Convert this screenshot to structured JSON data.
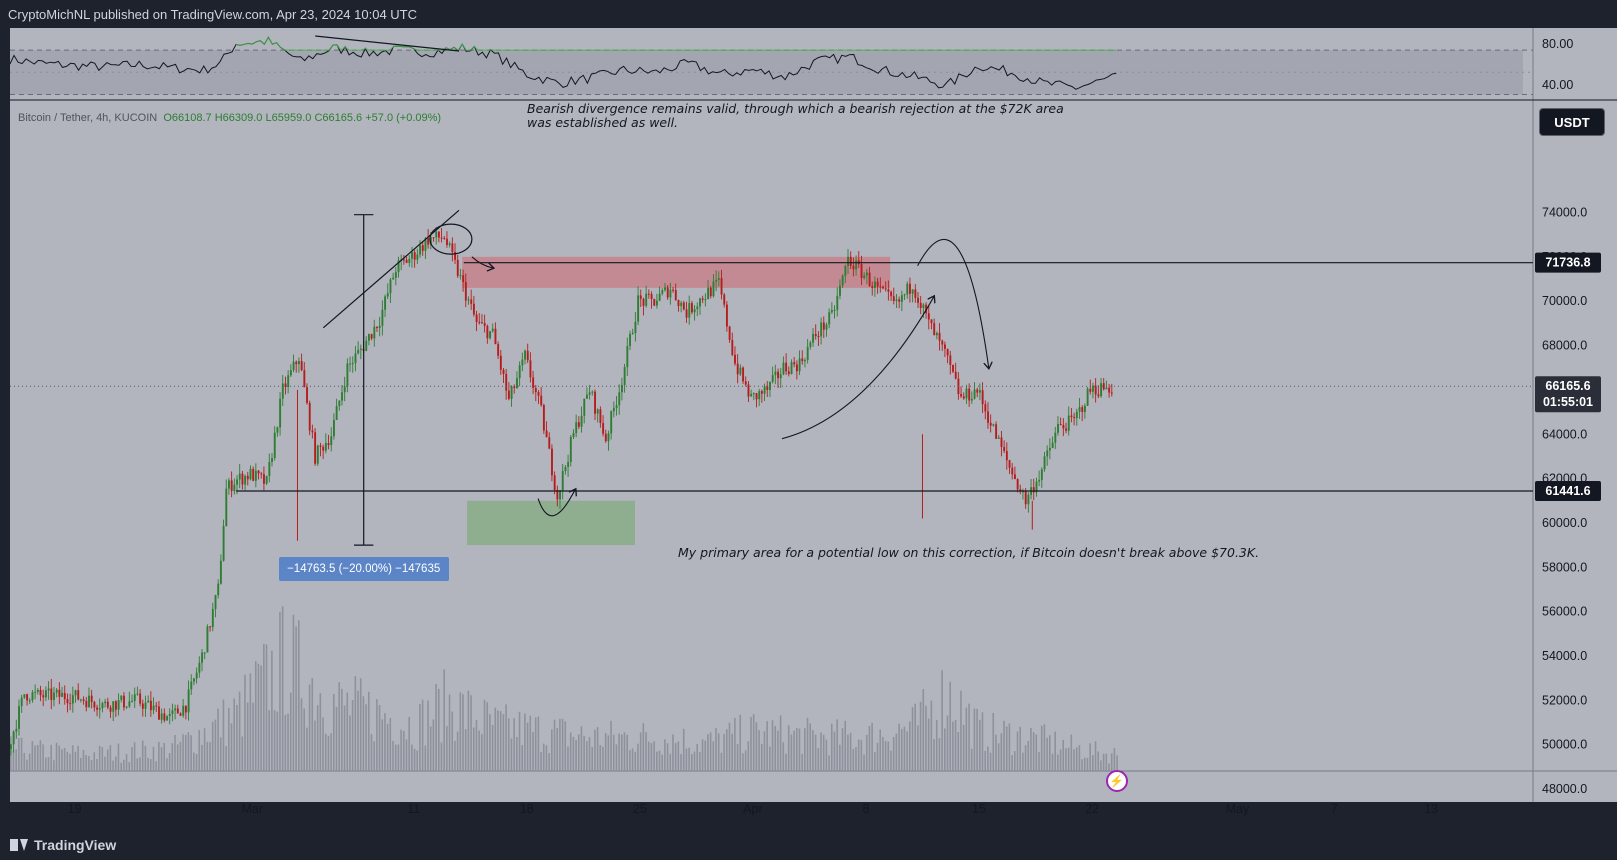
{
  "header": {
    "publisher_line": "CryptoMichNL published on TradingView.com, Apr 23, 2024 10:04 UTC"
  },
  "footer": {
    "brand": "TradingView"
  },
  "legend": {
    "symbol": "Bitcoin / Tether, 4h, KUCOIN",
    "open": "O66108.7",
    "high": "H66309.0",
    "low": "L65959.0",
    "close": "C66165.6",
    "change": "+57.0 (+0.09%)"
  },
  "currency_button": "USDT",
  "annotations": {
    "divergence_note_line1": "Bearish divergence remains valid, through which a bearish rejection at the $72K area",
    "divergence_note_line2": "was established as well.",
    "primary_area_note": "My primary area for a potential low on this correction, if Bitcoin doesn't break above $70.3K.",
    "measure_label": "−14763.5 (−20.00%) −147635"
  },
  "price_labels": {
    "resistance": "71736.8",
    "current": "66165.6",
    "countdown": "01:55:01",
    "support": "61441.6"
  },
  "colors": {
    "background": "#b2b5be",
    "up": "#2e7d32",
    "down": "#b71c1c",
    "resistance_zone": "#c48a93",
    "target_zone": "#8fae8f",
    "measure_box": "#5b85c7"
  },
  "chart_data": [
    {
      "type": "line",
      "title": "RSI",
      "ylim": [
        25,
        90
      ],
      "yticks": [
        "80.00",
        "40.00"
      ],
      "bands": [
        70,
        30
      ],
      "x_days": [
        0,
        2,
        4,
        6,
        8,
        10,
        12,
        13,
        14,
        16,
        18,
        20,
        22,
        24,
        26,
        28,
        30,
        32,
        34,
        36,
        38,
        40,
        42,
        44,
        46,
        48,
        50,
        52,
        54,
        56,
        58,
        60,
        62,
        64,
        66,
        68,
        70,
        72
      ],
      "values": [
        62,
        58,
        56,
        55,
        57,
        54,
        52,
        58,
        76,
        78,
        60,
        72,
        67,
        70,
        68,
        72,
        66,
        48,
        40,
        45,
        52,
        50,
        58,
        48,
        52,
        46,
        60,
        64,
        52,
        46,
        38,
        56,
        50,
        40,
        36,
        44,
        52,
        58
      ]
    },
    {
      "type": "candlestick",
      "title": "Bitcoin / Tether, 4h, KUCOIN",
      "ylabel": "USDT",
      "ylim": [
        47000,
        75000
      ],
      "yticks": [
        "74000.0",
        "72000.0",
        "70000.0",
        "68000.0",
        "66000.0",
        "64000.0",
        "62000.0",
        "60000.0",
        "58000.0",
        "56000.0",
        "54000.0",
        "52000.0",
        "50000.0",
        "48000.0"
      ],
      "xticks": [
        {
          "label": "19",
          "day": 4
        },
        {
          "label": "Mar",
          "day": 15
        },
        {
          "label": "11",
          "day": 25
        },
        {
          "label": "18",
          "day": 32
        },
        {
          "label": "25",
          "day": 39
        },
        {
          "label": "Apr",
          "day": 46
        },
        {
          "label": "8",
          "day": 53
        },
        {
          "label": "15",
          "day": 60
        },
        {
          "label": "22",
          "day": 67
        },
        {
          "label": "May",
          "day": 76
        },
        {
          "label": "7",
          "day": 82
        },
        {
          "label": "13",
          "day": 88
        }
      ],
      "x_start": "Feb 15, 2024",
      "series": [
        {
          "name": "BTC/USDT close",
          "x_days": [
            0,
            1,
            2,
            4,
            6,
            8,
            10,
            11,
            12,
            13,
            13.5,
            14,
            15,
            16,
            17,
            18,
            19,
            20,
            21,
            22,
            23,
            24,
            25,
            26,
            27,
            28,
            29,
            30,
            31,
            32,
            33,
            34,
            35,
            36,
            37,
            38,
            39,
            40,
            41,
            42,
            43,
            44,
            45,
            46,
            47,
            48,
            49,
            50,
            51,
            52,
            53,
            54,
            55,
            56,
            57,
            58,
            59,
            60,
            61,
            62,
            63,
            64,
            65,
            66,
            67,
            68
          ],
          "values": [
            49800,
            52300,
            52200,
            52200,
            51800,
            52000,
            51200,
            51800,
            54000,
            57000,
            61500,
            61900,
            62200,
            61800,
            66000,
            67500,
            63000,
            64000,
            67000,
            68000,
            69200,
            71500,
            72000,
            72800,
            72900,
            71000,
            69000,
            68500,
            65500,
            67500,
            65000,
            61200,
            64000,
            66000,
            63800,
            66500,
            70000,
            70000,
            70600,
            69500,
            70200,
            70800,
            67200,
            65600,
            66000,
            67000,
            67200,
            68500,
            69300,
            71900,
            71200,
            70400,
            69800,
            70800,
            69000,
            67600,
            65600,
            66000,
            64200,
            62500,
            61000,
            62400,
            64300,
            64600,
            66000,
            66100
          ]
        },
        {
          "name": "Volume",
          "unit": "relative",
          "x_days": [
            0,
            5,
            10,
            14,
            17,
            20,
            23,
            25,
            27,
            30,
            33,
            36,
            40,
            43,
            46,
            50,
            53,
            56,
            58,
            60,
            63,
            66,
            68
          ],
          "values": [
            0.2,
            0.15,
            0.2,
            0.5,
            1.0,
            0.6,
            0.5,
            0.4,
            0.6,
            0.4,
            0.35,
            0.3,
            0.3,
            0.25,
            0.35,
            0.3,
            0.3,
            0.4,
            0.7,
            0.35,
            0.3,
            0.2,
            0.15
          ]
        }
      ],
      "levels": [
        71736.8,
        61441.6,
        66165.6
      ],
      "zones": [
        {
          "from_day": 28,
          "to_day": 54.5,
          "low": 70600,
          "high": 72000
        },
        {
          "from_day": 28.3,
          "to_day": 38.7,
          "low": 59000,
          "high": 61000
        }
      ]
    }
  ]
}
